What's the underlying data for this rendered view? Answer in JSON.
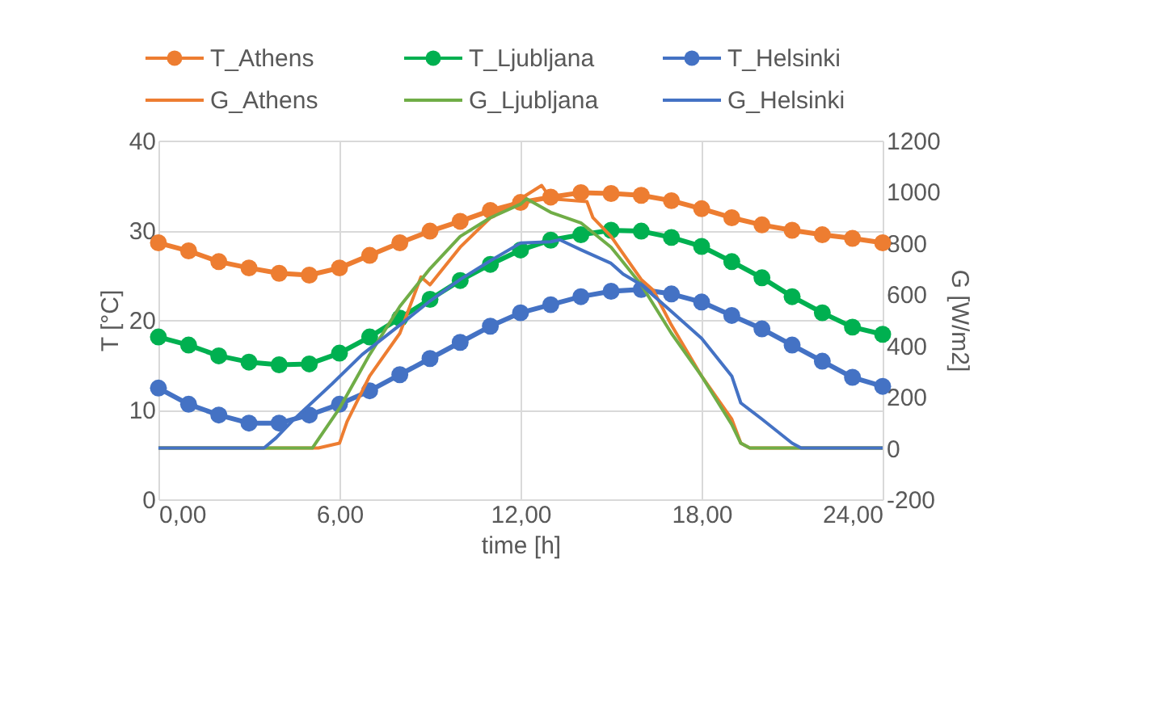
{
  "chart_data": {
    "type": "line",
    "xlabel": "time [h]",
    "ylabel": "T [°C]",
    "y2label": "G [W/m2]",
    "xlim": [
      0,
      24
    ],
    "xticks": [
      {
        "value": 0,
        "label": "0,00"
      },
      {
        "value": 6,
        "label": "6,00"
      },
      {
        "value": 12,
        "label": "12,00"
      },
      {
        "value": 18,
        "label": "18,00"
      },
      {
        "value": 24,
        "label": "24,00"
      }
    ],
    "ylim": [
      0,
      40
    ],
    "yticks": [
      0,
      10,
      20,
      30,
      40
    ],
    "y2lim": [
      -200,
      1200
    ],
    "y2ticks": [
      -200,
      0,
      200,
      400,
      600,
      800,
      1000,
      1200
    ],
    "grid": true,
    "legend": "top",
    "series": [
      {
        "name": "T_Athens",
        "color": "#ed7d31",
        "marker": "circle",
        "x": [
          0,
          1,
          2,
          3,
          4,
          5,
          6,
          7,
          8,
          9,
          10,
          11,
          12,
          13,
          14,
          15,
          16,
          17,
          18,
          19,
          20,
          21,
          22,
          23,
          24
        ],
        "values": [
          28.6,
          27.7,
          26.5,
          25.8,
          25.2,
          25.0,
          25.8,
          27.2,
          28.6,
          29.9,
          31.0,
          32.2,
          33.1,
          33.7,
          34.2,
          34.1,
          33.9,
          33.3,
          32.4,
          31.4,
          30.6,
          30.0,
          29.5,
          29.1,
          28.6
        ]
      },
      {
        "name": "T_Ljubljana",
        "color": "#00b050",
        "marker": "circle",
        "x": [
          0,
          1,
          2,
          3,
          4,
          5,
          6,
          7,
          8,
          9,
          10,
          11,
          12,
          13,
          14,
          15,
          16,
          17,
          18,
          19,
          20,
          21,
          22,
          23,
          24
        ],
        "values": [
          18.1,
          17.2,
          16.0,
          15.3,
          15.0,
          15.1,
          16.3,
          18.1,
          20.2,
          22.3,
          24.4,
          26.2,
          27.8,
          28.9,
          29.5,
          30.0,
          29.9,
          29.2,
          28.2,
          26.5,
          24.7,
          22.6,
          20.8,
          19.2,
          18.4
        ]
      },
      {
        "name": "T_Helsinki",
        "color": "#4472c4",
        "marker": "circle",
        "x": [
          0,
          1,
          2,
          3,
          4,
          5,
          6,
          7,
          8,
          9,
          10,
          11,
          12,
          13,
          14,
          15,
          16,
          17,
          18,
          19,
          20,
          21,
          22,
          23,
          24
        ],
        "values": [
          12.4,
          10.6,
          9.4,
          8.5,
          8.5,
          9.4,
          10.6,
          12.1,
          13.9,
          15.7,
          17.5,
          19.3,
          20.8,
          21.7,
          22.6,
          23.2,
          23.4,
          22.9,
          22.0,
          20.5,
          19.0,
          17.2,
          15.4,
          13.6,
          12.6
        ]
      },
      {
        "name": "G_Athens",
        "color": "#ed7d31",
        "marker": "none",
        "axis": "y2",
        "x": [
          0,
          5.3,
          6,
          6.25,
          7,
          8,
          8.7,
          9,
          10,
          11,
          12,
          12.7,
          13,
          14.2,
          14.4,
          15,
          16,
          16.4,
          17,
          18,
          19,
          19.3,
          19.6,
          24
        ],
        "values": [
          0,
          0,
          19,
          103,
          281,
          448,
          668,
          637,
          784,
          899,
          973,
          1025,
          973,
          962,
          899,
          826,
          658,
          616,
          480,
          281,
          113,
          19,
          0,
          0
        ]
      },
      {
        "name": "G_Ljubljana",
        "color": "#70ad47",
        "marker": "none",
        "axis": "y2",
        "x": [
          0,
          5.1,
          6,
          7,
          8,
          9,
          10,
          11,
          12,
          12.2,
          13,
          14,
          15,
          16,
          17,
          18,
          19,
          19.3,
          19.6,
          24
        ],
        "values": [
          0,
          0,
          155,
          365,
          553,
          700,
          826,
          899,
          952,
          973,
          920,
          879,
          784,
          637,
          448,
          281,
          92,
          19,
          0,
          0
        ]
      },
      {
        "name": "G_Helsinki",
        "color": "#4472c4",
        "marker": "none",
        "axis": "y2",
        "x": [
          0,
          3.5,
          3.9,
          4.5,
          5.75,
          6.75,
          8,
          9,
          10,
          11,
          12,
          13,
          13.3,
          14,
          15,
          15.4,
          16,
          17,
          18,
          19,
          19.3,
          20,
          21,
          21.3,
          24
        ],
        "values": [
          0,
          0,
          40,
          113,
          250,
          365,
          480,
          574,
          658,
          731,
          800,
          805,
          813,
          774,
          721,
          679,
          637,
          533,
          428,
          281,
          176,
          113,
          19,
          0,
          0
        ]
      }
    ]
  }
}
